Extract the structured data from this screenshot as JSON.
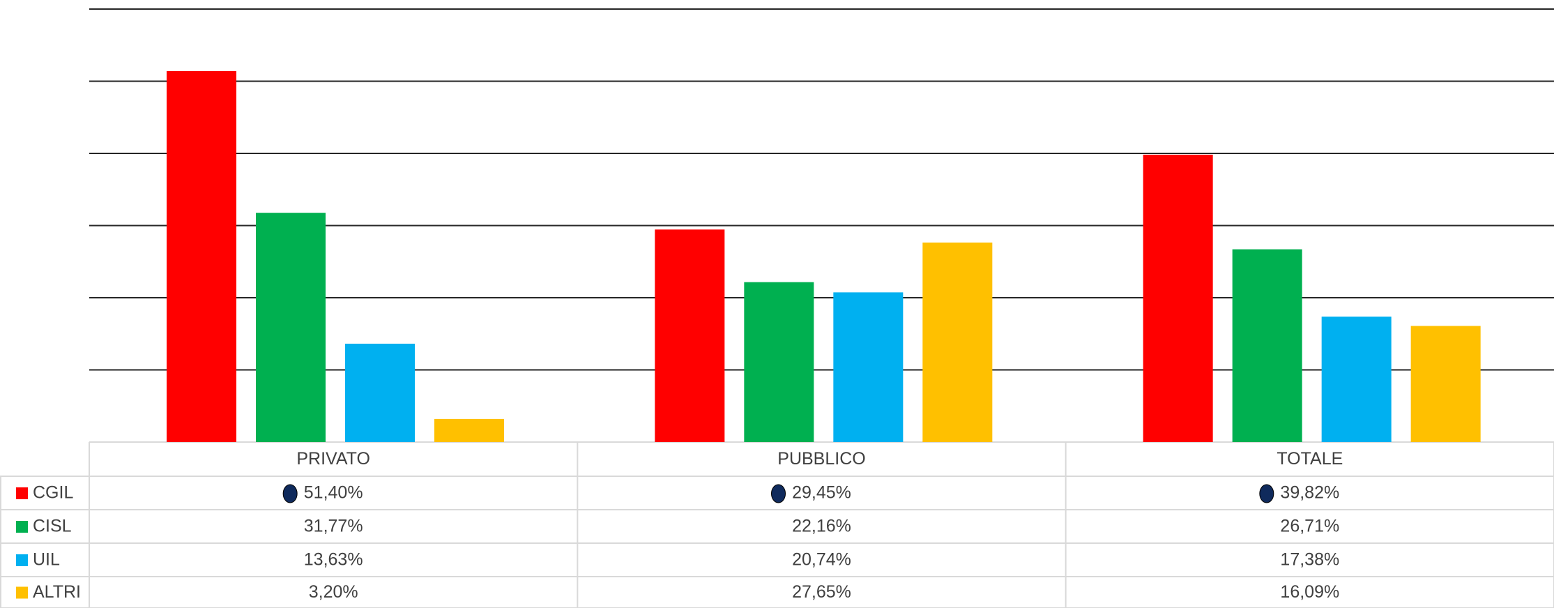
{
  "chart_data": {
    "type": "bar",
    "categories": [
      "PRIVATO",
      "PUBBLICO",
      "TOTALE"
    ],
    "series": [
      {
        "name": "CGIL",
        "color": "#ff0000",
        "values": [
          51.4,
          29.45,
          39.82
        ],
        "value_labels": [
          "51,40%",
          "29,45%",
          "39,82%"
        ]
      },
      {
        "name": "CISL",
        "color": "#00b050",
        "values": [
          31.77,
          22.16,
          26.71
        ],
        "value_labels": [
          "31,77%",
          "22,16%",
          "26,71%"
        ]
      },
      {
        "name": "UIL",
        "color": "#00b0f0",
        "values": [
          13.63,
          20.74,
          17.38
        ],
        "value_labels": [
          "13,63%",
          "20,74%",
          "17,38%"
        ]
      },
      {
        "name": "ALTRI",
        "color": "#ffc000",
        "values": [
          3.2,
          27.65,
          16.09
        ],
        "value_labels": [
          "3,20%",
          "27,65%",
          "16,09%"
        ]
      }
    ],
    "ylim": [
      0,
      60
    ],
    "yticks": [
      0,
      10,
      20,
      30,
      40,
      50,
      60
    ],
    "grid": true,
    "data_table": true
  }
}
